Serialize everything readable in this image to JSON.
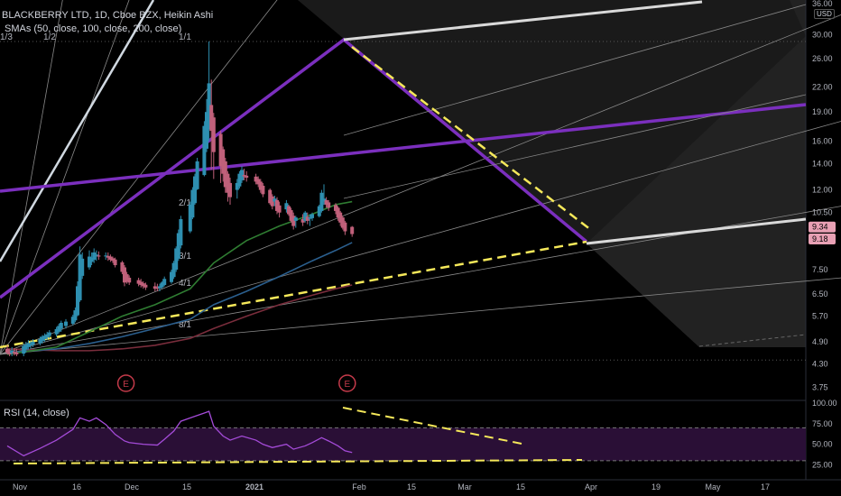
{
  "header": {
    "title": "BLACKBERRY LTD, 1D, Cboe BZX, Heikin Ashi",
    "indicator": "SMAs (50, close, 100, close, 200, close)",
    "rsi_label": "RSI (14, close)",
    "currency": "USD"
  },
  "fan_labels": [
    "1/3",
    "1/2",
    "1/1",
    "2/1",
    "3/1",
    "4/1",
    "8/1"
  ],
  "earnings_marker": "E",
  "colors": {
    "background": "#000000",
    "up_candle": "#2e8fb0",
    "down_candle": "#c0607a",
    "sma50": "#2f7d32",
    "sma100": "#2b5f8e",
    "sma200": "#7a2d3c",
    "purple_lines": "#7b2fbe",
    "yellow_dash": "#f5e85a",
    "rsi_line": "#a44bd8",
    "rsi_band": "#2a0f36",
    "white_channel": "#d9d9d9",
    "earnings": "#c43a4a"
  },
  "chart_data": [
    {
      "type": "candlestick",
      "title": "BLACKBERRY LTD, 1D, Cboe BZX, Heikin Ashi",
      "y_scale": "log",
      "ylim": [
        3.6,
        36.0
      ],
      "y_ticks": [
        36.0,
        30.0,
        26.0,
        22.0,
        19.0,
        16.0,
        14.0,
        12.0,
        10.5,
        9.34,
        9.18,
        7.5,
        6.5,
        5.7,
        4.9,
        4.3,
        3.75
      ],
      "x_ticks": [
        "Nov",
        "16",
        "Dec",
        "15",
        "2021",
        "Feb",
        "15",
        "Mar",
        "15",
        "Apr",
        "19",
        "May",
        "17"
      ],
      "last_prices": [
        9.34,
        9.18
      ],
      "candles": [
        {
          "date": "2020-11-02",
          "o": 4.7,
          "h": 4.8,
          "l": 4.55,
          "c": 4.6
        },
        {
          "date": "2020-11-03",
          "o": 4.62,
          "h": 4.7,
          "l": 4.5,
          "c": 4.55
        },
        {
          "date": "2020-11-04",
          "o": 4.58,
          "h": 4.75,
          "l": 4.5,
          "c": 4.65
        },
        {
          "date": "2020-11-05",
          "o": 4.62,
          "h": 4.72,
          "l": 4.52,
          "c": 4.58
        },
        {
          "date": "2020-11-06",
          "o": 4.6,
          "h": 4.7,
          "l": 4.5,
          "c": 4.55
        },
        {
          "date": "2020-11-09",
          "o": 4.57,
          "h": 4.85,
          "l": 4.5,
          "c": 4.78
        },
        {
          "date": "2020-11-10",
          "o": 4.68,
          "h": 4.9,
          "l": 4.6,
          "c": 4.82
        },
        {
          "date": "2020-11-11",
          "o": 4.75,
          "h": 4.95,
          "l": 4.68,
          "c": 4.86
        },
        {
          "date": "2020-11-12",
          "o": 4.8,
          "h": 4.92,
          "l": 4.7,
          "c": 4.85
        },
        {
          "date": "2020-11-13",
          "o": 4.82,
          "h": 4.98,
          "l": 4.75,
          "c": 4.9
        },
        {
          "date": "2020-11-16",
          "o": 4.86,
          "h": 5.05,
          "l": 4.8,
          "c": 4.98
        },
        {
          "date": "2020-11-17",
          "o": 4.92,
          "h": 5.1,
          "l": 4.85,
          "c": 5.05
        },
        {
          "date": "2020-11-18",
          "o": 4.98,
          "h": 5.15,
          "l": 4.9,
          "c": 5.08
        },
        {
          "date": "2020-11-19",
          "o": 5.03,
          "h": 5.2,
          "l": 4.95,
          "c": 5.12
        },
        {
          "date": "2020-11-20",
          "o": 5.07,
          "h": 5.25,
          "l": 5.0,
          "c": 5.18
        },
        {
          "date": "2020-11-23",
          "o": 5.12,
          "h": 5.35,
          "l": 5.05,
          "c": 5.28
        },
        {
          "date": "2020-11-24",
          "o": 5.2,
          "h": 5.45,
          "l": 5.15,
          "c": 5.38
        },
        {
          "date": "2020-11-25",
          "o": 5.29,
          "h": 5.55,
          "l": 5.2,
          "c": 5.48
        },
        {
          "date": "2020-11-27",
          "o": 5.38,
          "h": 5.6,
          "l": 5.3,
          "c": 5.52
        },
        {
          "date": "2020-11-30",
          "o": 5.45,
          "h": 5.75,
          "l": 5.4,
          "c": 5.68
        },
        {
          "date": "2020-12-01",
          "o": 5.56,
          "h": 6.0,
          "l": 5.5,
          "c": 5.9
        },
        {
          "date": "2020-12-02",
          "o": 5.73,
          "h": 7.0,
          "l": 5.7,
          "c": 6.8
        },
        {
          "date": "2020-12-03",
          "o": 6.26,
          "h": 8.6,
          "l": 6.2,
          "c": 8.2
        },
        {
          "date": "2020-12-04",
          "o": 7.23,
          "h": 8.3,
          "l": 7.1,
          "c": 8.0
        },
        {
          "date": "2020-12-07",
          "o": 7.6,
          "h": 8.4,
          "l": 7.5,
          "c": 8.1
        },
        {
          "date": "2020-12-08",
          "o": 7.85,
          "h": 8.3,
          "l": 7.7,
          "c": 8.05
        },
        {
          "date": "2020-12-09",
          "o": 7.95,
          "h": 8.5,
          "l": 7.8,
          "c": 8.3
        },
        {
          "date": "2020-12-10",
          "o": 8.1,
          "h": 8.4,
          "l": 7.9,
          "c": 8.2
        },
        {
          "date": "2020-12-11",
          "o": 8.15,
          "h": 8.35,
          "l": 7.95,
          "c": 8.1
        },
        {
          "date": "2020-12-14",
          "o": 8.12,
          "h": 8.3,
          "l": 7.95,
          "c": 8.15
        },
        {
          "date": "2020-12-15",
          "o": 8.13,
          "h": 8.3,
          "l": 7.9,
          "c": 8.05
        },
        {
          "date": "2020-12-16",
          "o": 8.1,
          "h": 8.2,
          "l": 7.85,
          "c": 7.95
        },
        {
          "date": "2020-12-17",
          "o": 8.02,
          "h": 8.1,
          "l": 7.8,
          "c": 7.9
        },
        {
          "date": "2020-12-18",
          "o": 7.96,
          "h": 8.05,
          "l": 7.6,
          "c": 7.7
        },
        {
          "date": "2020-12-21",
          "o": 7.83,
          "h": 7.9,
          "l": 7.3,
          "c": 7.4
        },
        {
          "date": "2020-12-22",
          "o": 7.6,
          "h": 7.7,
          "l": 6.8,
          "c": 6.95
        },
        {
          "date": "2020-12-23",
          "o": 7.3,
          "h": 7.4,
          "l": 6.9,
          "c": 7.0
        },
        {
          "date": "2020-12-24",
          "o": 7.15,
          "h": 7.25,
          "l": 6.85,
          "c": 6.95
        },
        {
          "date": "2020-12-28",
          "o": 7.05,
          "h": 7.15,
          "l": 6.8,
          "c": 6.9
        },
        {
          "date": "2020-12-29",
          "o": 6.98,
          "h": 7.1,
          "l": 6.75,
          "c": 6.85
        },
        {
          "date": "2020-12-30",
          "o": 6.92,
          "h": 7.0,
          "l": 6.7,
          "c": 6.8
        },
        {
          "date": "2020-12-31",
          "o": 6.86,
          "h": 6.95,
          "l": 6.65,
          "c": 6.75
        },
        {
          "date": "2021-01-04",
          "o": 6.8,
          "h": 6.95,
          "l": 6.6,
          "c": 6.7
        },
        {
          "date": "2021-01-05",
          "o": 6.75,
          "h": 6.9,
          "l": 6.6,
          "c": 6.7
        },
        {
          "date": "2021-01-06",
          "o": 6.72,
          "h": 6.9,
          "l": 6.6,
          "c": 6.8
        },
        {
          "date": "2021-01-07",
          "o": 6.76,
          "h": 7.0,
          "l": 6.7,
          "c": 6.95
        },
        {
          "date": "2021-01-08",
          "o": 6.85,
          "h": 7.2,
          "l": 6.8,
          "c": 7.1
        },
        {
          "date": "2021-01-11",
          "o": 6.97,
          "h": 7.5,
          "l": 6.9,
          "c": 7.4
        },
        {
          "date": "2021-01-12",
          "o": 7.18,
          "h": 7.9,
          "l": 7.1,
          "c": 7.8
        },
        {
          "date": "2021-01-13",
          "o": 7.5,
          "h": 8.6,
          "l": 7.4,
          "c": 8.5
        },
        {
          "date": "2021-01-14",
          "o": 8.0,
          "h": 9.5,
          "l": 7.9,
          "c": 9.3
        },
        {
          "date": "2021-01-15",
          "o": 8.65,
          "h": 10.3,
          "l": 8.5,
          "c": 10.1
        },
        {
          "date": "2021-01-19",
          "o": 9.4,
          "h": 11.2,
          "l": 9.3,
          "c": 11.0
        },
        {
          "date": "2021-01-20",
          "o": 10.2,
          "h": 12.2,
          "l": 10.1,
          "c": 12.0
        },
        {
          "date": "2021-01-21",
          "o": 11.1,
          "h": 13.2,
          "l": 11.0,
          "c": 13.0
        },
        {
          "date": "2021-01-22",
          "o": 12.05,
          "h": 14.5,
          "l": 12.0,
          "c": 14.2
        },
        {
          "date": "2021-01-25",
          "o": 13.1,
          "h": 18.0,
          "l": 13.0,
          "c": 17.5
        },
        {
          "date": "2021-01-26",
          "o": 15.3,
          "h": 20.5,
          "l": 15.0,
          "c": 19.0
        },
        {
          "date": "2021-01-27",
          "o": 17.15,
          "h": 28.8,
          "l": 16.0,
          "c": 22.5
        },
        {
          "date": "2021-01-28",
          "o": 19.8,
          "h": 23.0,
          "l": 13.5,
          "c": 17.0
        },
        {
          "date": "2021-01-29",
          "o": 18.4,
          "h": 18.9,
          "l": 12.8,
          "c": 15.0
        },
        {
          "date": "2021-02-01",
          "o": 16.7,
          "h": 17.0,
          "l": 12.5,
          "c": 13.8
        },
        {
          "date": "2021-02-02",
          "o": 15.25,
          "h": 15.5,
          "l": 12.6,
          "c": 13.2
        },
        {
          "date": "2021-02-03",
          "o": 14.2,
          "h": 14.5,
          "l": 11.8,
          "c": 12.2
        },
        {
          "date": "2021-02-04",
          "o": 13.2,
          "h": 13.4,
          "l": 11.2,
          "c": 11.8
        },
        {
          "date": "2021-02-05",
          "o": 12.5,
          "h": 12.9,
          "l": 11.0,
          "c": 11.5
        },
        {
          "date": "2021-02-08",
          "o": 12.0,
          "h": 12.8,
          "l": 11.4,
          "c": 12.5
        },
        {
          "date": "2021-02-09",
          "o": 12.25,
          "h": 13.4,
          "l": 12.1,
          "c": 13.2
        },
        {
          "date": "2021-02-10",
          "o": 12.7,
          "h": 13.8,
          "l": 12.5,
          "c": 13.5
        },
        {
          "date": "2021-02-11",
          "o": 13.1,
          "h": 13.6,
          "l": 12.7,
          "c": 13.0
        },
        {
          "date": "2021-02-12",
          "o": 13.05,
          "h": 13.4,
          "l": 12.6,
          "c": 12.9
        },
        {
          "date": "2021-02-16",
          "o": 12.98,
          "h": 13.2,
          "l": 12.4,
          "c": 12.6
        },
        {
          "date": "2021-02-17",
          "o": 12.8,
          "h": 13.0,
          "l": 12.2,
          "c": 12.4
        },
        {
          "date": "2021-02-18",
          "o": 12.6,
          "h": 12.8,
          "l": 11.8,
          "c": 12.0
        },
        {
          "date": "2021-02-19",
          "o": 12.3,
          "h": 12.5,
          "l": 11.5,
          "c": 11.7
        },
        {
          "date": "2021-02-22",
          "o": 12.0,
          "h": 12.1,
          "l": 11.0,
          "c": 11.1
        },
        {
          "date": "2021-02-23",
          "o": 11.55,
          "h": 11.7,
          "l": 10.7,
          "c": 10.9
        },
        {
          "date": "2021-02-24",
          "o": 11.2,
          "h": 11.6,
          "l": 10.9,
          "c": 11.4
        },
        {
          "date": "2021-02-25",
          "o": 11.3,
          "h": 11.5,
          "l": 10.4,
          "c": 10.6
        },
        {
          "date": "2021-02-26",
          "o": 10.95,
          "h": 11.2,
          "l": 10.2,
          "c": 10.5
        },
        {
          "date": "2021-03-01",
          "o": 10.7,
          "h": 11.3,
          "l": 10.5,
          "c": 11.1
        },
        {
          "date": "2021-03-02",
          "o": 10.9,
          "h": 11.0,
          "l": 10.3,
          "c": 10.4
        },
        {
          "date": "2021-03-03",
          "o": 10.65,
          "h": 10.8,
          "l": 9.9,
          "c": 10.0
        },
        {
          "date": "2021-03-04",
          "o": 10.3,
          "h": 10.5,
          "l": 9.5,
          "c": 9.7
        },
        {
          "date": "2021-03-05",
          "o": 10.0,
          "h": 10.3,
          "l": 9.6,
          "c": 10.2
        },
        {
          "date": "2021-03-08",
          "o": 10.1,
          "h": 10.4,
          "l": 9.7,
          "c": 9.9
        },
        {
          "date": "2021-03-09",
          "o": 10.0,
          "h": 10.6,
          "l": 9.9,
          "c": 10.5
        },
        {
          "date": "2021-03-10",
          "o": 10.25,
          "h": 10.5,
          "l": 9.8,
          "c": 10.0
        },
        {
          "date": "2021-03-11",
          "o": 10.12,
          "h": 10.4,
          "l": 9.7,
          "c": 10.2
        },
        {
          "date": "2021-03-12",
          "o": 10.16,
          "h": 10.5,
          "l": 10.0,
          "c": 10.4
        },
        {
          "date": "2021-03-15",
          "o": 10.28,
          "h": 11.0,
          "l": 10.2,
          "c": 10.9
        },
        {
          "date": "2021-03-16",
          "o": 10.6,
          "h": 12.0,
          "l": 10.5,
          "c": 11.8
        },
        {
          "date": "2021-03-17",
          "o": 11.2,
          "h": 12.4,
          "l": 11.0,
          "c": 11.4
        },
        {
          "date": "2021-03-18",
          "o": 11.3,
          "h": 11.5,
          "l": 10.8,
          "c": 11.0
        },
        {
          "date": "2021-03-19",
          "o": 11.15,
          "h": 11.3,
          "l": 10.6,
          "c": 10.8
        },
        {
          "date": "2021-03-22",
          "o": 10.98,
          "h": 11.1,
          "l": 10.4,
          "c": 10.6
        },
        {
          "date": "2021-03-23",
          "o": 10.8,
          "h": 10.9,
          "l": 10.0,
          "c": 10.2
        },
        {
          "date": "2021-03-24",
          "o": 10.5,
          "h": 10.6,
          "l": 9.7,
          "c": 9.9
        },
        {
          "date": "2021-03-25",
          "o": 10.2,
          "h": 10.3,
          "l": 9.5,
          "c": 9.6
        },
        {
          "date": "2021-03-26",
          "o": 9.9,
          "h": 10.0,
          "l": 9.2,
          "c": 9.4
        },
        {
          "date": "2021-03-29",
          "o": 9.65,
          "h": 9.7,
          "l": 9.1,
          "c": 9.25
        }
      ],
      "sma50": [
        [
          "2020-11-02",
          4.55
        ],
        [
          "2020-11-23",
          4.75
        ],
        [
          "2020-12-07",
          5.2
        ],
        [
          "2020-12-21",
          5.7
        ],
        [
          "2021-01-04",
          6.1
        ],
        [
          "2021-01-19",
          6.7
        ],
        [
          "2021-01-29",
          7.8
        ],
        [
          "2021-02-12",
          8.9
        ],
        [
          "2021-02-26",
          9.7
        ],
        [
          "2021-03-12",
          10.4
        ],
        [
          "2021-03-22",
          11.0
        ],
        [
          "2021-03-29",
          11.2
        ]
      ],
      "sma100": [
        [
          "2020-11-02",
          4.6
        ],
        [
          "2020-11-23",
          4.7
        ],
        [
          "2020-12-07",
          4.85
        ],
        [
          "2020-12-21",
          5.05
        ],
        [
          "2021-01-04",
          5.3
        ],
        [
          "2021-01-19",
          5.6
        ],
        [
          "2021-01-29",
          6.1
        ],
        [
          "2021-02-12",
          6.6
        ],
        [
          "2021-02-26",
          7.2
        ],
        [
          "2021-03-12",
          7.9
        ],
        [
          "2021-03-22",
          8.4
        ],
        [
          "2021-03-29",
          8.8
        ]
      ],
      "sma200": [
        [
          "2020-11-02",
          4.7
        ],
        [
          "2020-11-23",
          4.65
        ],
        [
          "2020-12-07",
          4.65
        ],
        [
          "2020-12-21",
          4.7
        ],
        [
          "2021-01-04",
          4.8
        ],
        [
          "2021-01-19",
          5.0
        ],
        [
          "2021-01-29",
          5.3
        ],
        [
          "2021-02-12",
          5.7
        ],
        [
          "2021-02-26",
          6.1
        ],
        [
          "2021-03-12",
          6.45
        ],
        [
          "2021-03-22",
          6.7
        ],
        [
          "2021-03-29",
          6.85
        ]
      ]
    },
    {
      "type": "line",
      "title": "RSI (14, close)",
      "ylim": [
        20,
        100
      ],
      "y_ticks": [
        100.0,
        75.0,
        50.0,
        25.0
      ],
      "band": [
        30,
        70
      ],
      "values": [
        [
          "2020-11-02",
          48
        ],
        [
          "2020-11-09",
          36
        ],
        [
          "2020-11-16",
          45
        ],
        [
          "2020-11-23",
          55
        ],
        [
          "2020-11-30",
          68
        ],
        [
          "2020-12-03",
          82
        ],
        [
          "2020-12-07",
          78
        ],
        [
          "2020-12-10",
          82
        ],
        [
          "2020-12-14",
          74
        ],
        [
          "2020-12-18",
          62
        ],
        [
          "2020-12-22",
          54
        ],
        [
          "2020-12-24",
          52
        ],
        [
          "2020-12-30",
          50
        ],
        [
          "2021-01-05",
          49
        ],
        [
          "2021-01-08",
          56
        ],
        [
          "2021-01-12",
          66
        ],
        [
          "2021-01-15",
          78
        ],
        [
          "2021-01-20",
          83
        ],
        [
          "2021-01-25",
          88
        ],
        [
          "2021-01-27",
          90
        ],
        [
          "2021-01-29",
          72
        ],
        [
          "2021-02-02",
          60
        ],
        [
          "2021-02-05",
          55
        ],
        [
          "2021-02-10",
          60
        ],
        [
          "2021-02-16",
          55
        ],
        [
          "2021-02-19",
          50
        ],
        [
          "2021-02-23",
          46
        ],
        [
          "2021-03-01",
          50
        ],
        [
          "2021-03-04",
          44
        ],
        [
          "2021-03-09",
          48
        ],
        [
          "2021-03-12",
          52
        ],
        [
          "2021-03-16",
          58
        ],
        [
          "2021-03-19",
          54
        ],
        [
          "2021-03-23",
          48
        ],
        [
          "2021-03-26",
          42
        ],
        [
          "2021-03-29",
          40
        ]
      ]
    }
  ]
}
